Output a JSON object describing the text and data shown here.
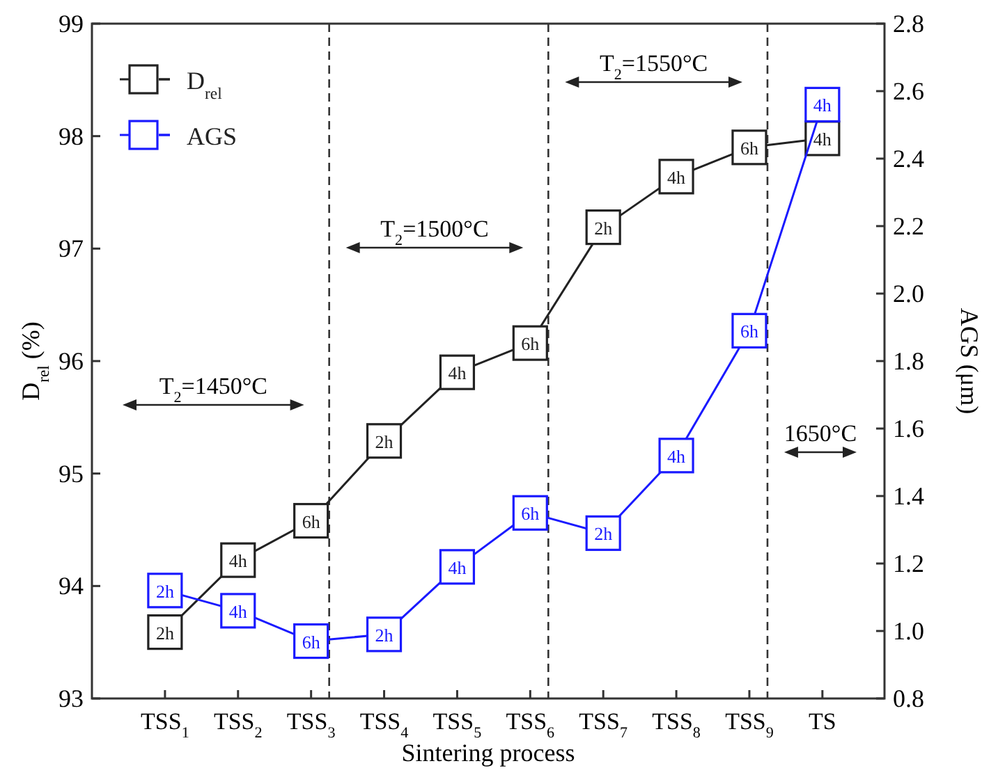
{
  "chart_data": {
    "type": "line",
    "xlabel": "Sintering process",
    "ylabel": "D$_{rel}$ (%)",
    "y2label": "AGS (μm)",
    "categories": [
      "TSS$_{1}$",
      "TSS$_{2}$",
      "TSS$_{3}$",
      "TSS$_{4}$",
      "TSS$_{5}$",
      "TSS$_{6}$",
      "TSS$_{7}$",
      "TSS$_{8}$",
      "TSS$_{9}$",
      "TS"
    ],
    "series": [
      {
        "name": "D$_{rel}$",
        "color": "#222222",
        "values": [
          93.59,
          94.23,
          94.58,
          95.29,
          95.9,
          96.16,
          97.19,
          97.64,
          97.9,
          97.98
        ]
      },
      {
        "name": "AGS",
        "color": "#1a1aff",
        "axis": "y2",
        "values": [
          1.12,
          1.06,
          0.97,
          0.99,
          1.19,
          1.35,
          1.29,
          1.52,
          1.89,
          2.56
        ]
      }
    ],
    "ylim": [
      93,
      99
    ],
    "yticks": [
      93,
      94,
      95,
      96,
      97,
      98,
      99
    ],
    "y2lim": [
      0.8,
      2.8
    ],
    "y2ticks": [
      {
        "value": 0.8,
        "label": "0.8"
      },
      {
        "value": 1.0,
        "label": "1.0"
      },
      {
        "value": 1.2,
        "label": "1.2"
      },
      {
        "value": 1.4,
        "label": "1.4"
      },
      {
        "value": 1.6,
        "label": "1.6"
      },
      {
        "value": 1.8,
        "label": "1.8"
      },
      {
        "value": 2.0,
        "label": "2.0"
      },
      {
        "value": 2.2,
        "label": "2.2"
      },
      {
        "value": 2.4,
        "label": "2.4"
      },
      {
        "value": 2.6,
        "label": "2.6"
      },
      {
        "value": 2.8,
        "label": "2.8"
      }
    ],
    "ref_lines": [
      {
        "axis": "x",
        "value": "TSS$_{3}$",
        "line_style": "dashed",
        "color": "#333333"
      },
      {
        "axis": "x",
        "value": "TSS$_{6}$",
        "line_style": "dashed",
        "color": "#333333"
      },
      {
        "axis": "x",
        "value": "TSS$_{9}$",
        "line_style": "dashed",
        "color": "#333333"
      }
    ],
    "annotations": [
      "T$_{2}$=1450°C",
      "T$_{2}$=1500°C",
      "T$_{2}$=1550°C",
      "1650°C",
      {
        "text": "2h",
        "x": "TSS$_{1}$",
        "y": 93.59
      },
      {
        "text": "4h",
        "x": "TSS$_{2}$",
        "y": 94.23
      },
      {
        "text": "6h",
        "x": "TSS$_{3}$",
        "y": 94.58
      },
      {
        "text": "2h",
        "x": "TSS$_{4}$",
        "y": 95.29
      },
      {
        "text": "4h",
        "x": "TSS$_{5}$",
        "y": 95.9
      },
      {
        "text": "6h",
        "x": "TSS$_{6}$",
        "y": 96.16
      },
      {
        "text": "2h",
        "x": "TSS$_{7}$",
        "y": 97.19
      },
      {
        "text": "4h",
        "x": "TSS$_{8}$",
        "y": 97.64
      },
      {
        "text": "6h",
        "x": "TSS$_{9}$",
        "y": 97.9
      },
      {
        "text": "4h",
        "x": "TS",
        "y": 97.98
      },
      "2h",
      "4h",
      "6h",
      "2h",
      "4h",
      "6h",
      "2h",
      "4h",
      "6h",
      "4h"
    ],
    "marker": "square",
    "line_style": "solid",
    "legend": "top left",
    "grid": false
  }
}
